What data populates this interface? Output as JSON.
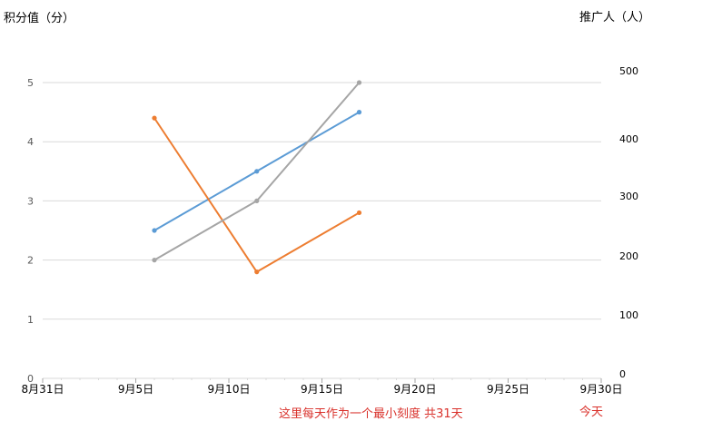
{
  "chart_data": {
    "type": "line",
    "ylabel_left": "积分值（分）",
    "ylabel_right": "推广人（人）",
    "x_tick_labels": [
      "8月31日",
      "9月5日",
      "9月10日",
      "9月15日",
      "9月20日",
      "9月25日",
      "9月30日"
    ],
    "x_tick_days": [
      0,
      5,
      10,
      15,
      20,
      25,
      30
    ],
    "xlim_days": [
      0,
      30
    ],
    "y_left_ticks": [
      "0",
      "1",
      "2",
      "3",
      "4",
      "5"
    ],
    "y_right_ticks": [
      "0",
      "100",
      "200",
      "300",
      "400",
      "500"
    ],
    "ylim_left": [
      0,
      5
    ],
    "ylim_right": [
      0,
      500
    ],
    "grid": true,
    "series": [
      {
        "color": "#5b9bd5",
        "x_days": [
          6,
          11.5,
          17
        ],
        "values": [
          2.5,
          3.5,
          4.5
        ]
      },
      {
        "color": "#ed7d31",
        "x_days": [
          6,
          11.5,
          17
        ],
        "values": [
          4.4,
          1.8,
          2.8
        ]
      },
      {
        "color": "#a5a5a5",
        "x_days": [
          6,
          11.5,
          17
        ],
        "values": [
          2.0,
          3.0,
          5.0
        ]
      }
    ]
  },
  "notes": {
    "scale": "这里每天作为一个最小刻度 共31天",
    "today": "今天"
  }
}
